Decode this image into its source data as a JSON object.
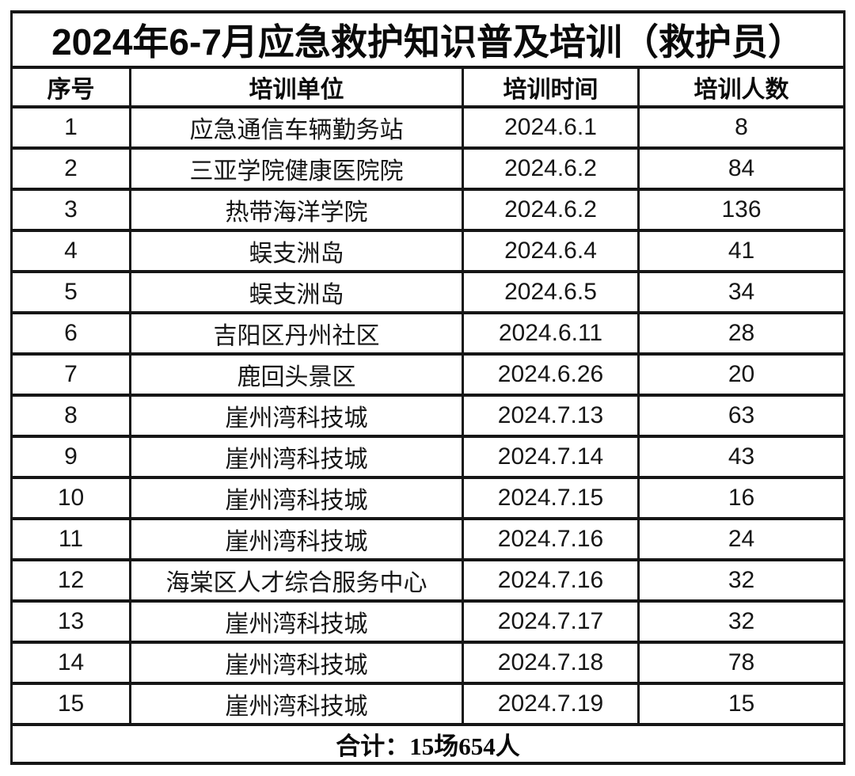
{
  "page": {
    "title": "2024年6-7月应急救护知识普及培训（救护员）"
  },
  "table": {
    "columns": [
      "序号",
      "培训单位",
      "培训时间",
      "培训人数"
    ],
    "rows": [
      [
        "1",
        "应急通信车辆勤务站",
        "2024.6.1",
        "8"
      ],
      [
        "2",
        "三亚学院健康医院院",
        "2024.6.2",
        "84"
      ],
      [
        "3",
        "热带海洋学院",
        "2024.6.2",
        "136"
      ],
      [
        "4",
        "蜈支洲岛",
        "2024.6.4",
        "41"
      ],
      [
        "5",
        "蜈支洲岛",
        "2024.6.5",
        "34"
      ],
      [
        "6",
        "吉阳区丹州社区",
        "2024.6.11",
        "28"
      ],
      [
        "7",
        "鹿回头景区",
        "2024.6.26",
        "20"
      ],
      [
        "8",
        "崖州湾科技城",
        "2024.7.13",
        "63"
      ],
      [
        "9",
        "崖州湾科技城",
        "2024.7.14",
        "43"
      ],
      [
        "10",
        "崖州湾科技城",
        "2024.7.15",
        "16"
      ],
      [
        "11",
        "崖州湾科技城",
        "2024.7.16",
        "24"
      ],
      [
        "12",
        "海棠区人才综合服务中心",
        "2024.7.16",
        "32"
      ],
      [
        "13",
        "崖州湾科技城",
        "2024.7.17",
        "32"
      ],
      [
        "14",
        "崖州湾科技城",
        "2024.7.18",
        "78"
      ],
      [
        "15",
        "崖州湾科技城",
        "2024.7.19",
        "15"
      ]
    ],
    "total": "合计：15场654人"
  },
  "colors": {
    "background": "#ffffff",
    "border": "#161616",
    "text": "#111111"
  }
}
